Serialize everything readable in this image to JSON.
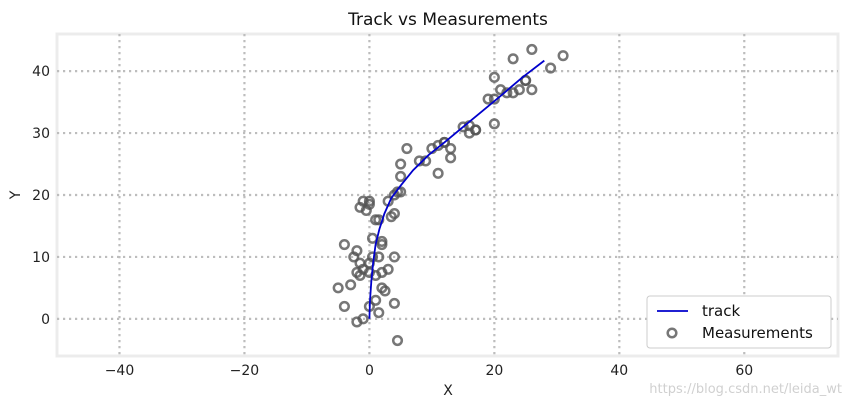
{
  "chart_data": {
    "type": "scatter",
    "title": "Track vs Measurements",
    "xlabel": "X",
    "ylabel": "Y",
    "xlim": [
      -50,
      75
    ],
    "ylim": [
      -6,
      46
    ],
    "xticks": [
      -40,
      -20,
      0,
      20,
      40,
      60
    ],
    "yticks": [
      0,
      10,
      20,
      30,
      40
    ],
    "xtick_labels": [
      "−40",
      "−20",
      "0",
      "20",
      "40",
      "60"
    ],
    "ytick_labels": [
      "0",
      "10",
      "20",
      "30",
      "40"
    ],
    "grid": true,
    "grid_style": "dotted",
    "legend_position": "lower-right",
    "series": [
      {
        "name": "track",
        "kind": "line",
        "color": "#0000cc",
        "x": [
          0,
          0.1,
          0.3,
          0.6,
          1.0,
          1.6,
          2.4,
          3.5,
          5.0,
          7.0,
          9.5,
          12.0,
          15.0,
          18.0,
          21.0,
          24.5,
          28.0
        ],
        "y": [
          0,
          3,
          6,
          9,
          12,
          14.5,
          17,
          19.5,
          21.5,
          24,
          26.5,
          28.5,
          31,
          33.5,
          36,
          39,
          41.7
        ]
      },
      {
        "name": "Measurements",
        "kind": "scatter",
        "color": "#555555",
        "x": [
          -5,
          -4,
          -2,
          -1,
          0,
          1,
          1.5,
          4,
          4.5,
          2,
          2.5,
          -3,
          -2,
          -1.5,
          -1,
          0,
          1,
          2,
          3,
          4,
          -2.5,
          -1.5,
          0,
          0.5,
          1.5,
          2,
          -4,
          -2,
          0.5,
          2,
          4,
          -1.5,
          -0.5,
          0,
          1.5,
          3,
          3.5,
          4,
          4.5,
          5,
          -1,
          0,
          1,
          5,
          5,
          9,
          10,
          11,
          12,
          6,
          8,
          11,
          13,
          13,
          15,
          16,
          17,
          16,
          17,
          20,
          20,
          19,
          21,
          20,
          22,
          23,
          24,
          23,
          25,
          26,
          29,
          31,
          26,
          25,
          12
        ],
        "y": [
          5,
          2,
          -0.5,
          0,
          2,
          3,
          1,
          2.5,
          -3.5,
          5,
          4.5,
          5.5,
          7.5,
          7,
          8,
          7.5,
          7,
          7.5,
          8,
          10,
          10,
          9,
          9,
          10,
          10,
          12.5,
          12,
          11,
          13,
          12,
          17,
          18,
          17.5,
          19,
          16,
          19,
          16.5,
          20,
          20.5,
          20.5,
          19,
          18.5,
          16,
          23,
          25,
          25.5,
          27.5,
          28,
          28.5,
          27.5,
          25.5,
          23.5,
          26,
          27.5,
          31,
          30,
          30.5,
          31.2,
          30.5,
          31.5,
          35.5,
          35.5,
          37,
          39,
          36.5,
          36.5,
          37,
          42,
          38.5,
          37,
          40.5,
          42.5,
          43.5,
          38.5,
          28.5
        ]
      }
    ]
  },
  "watermark": "https://blog.csdn.net/leida_wt"
}
